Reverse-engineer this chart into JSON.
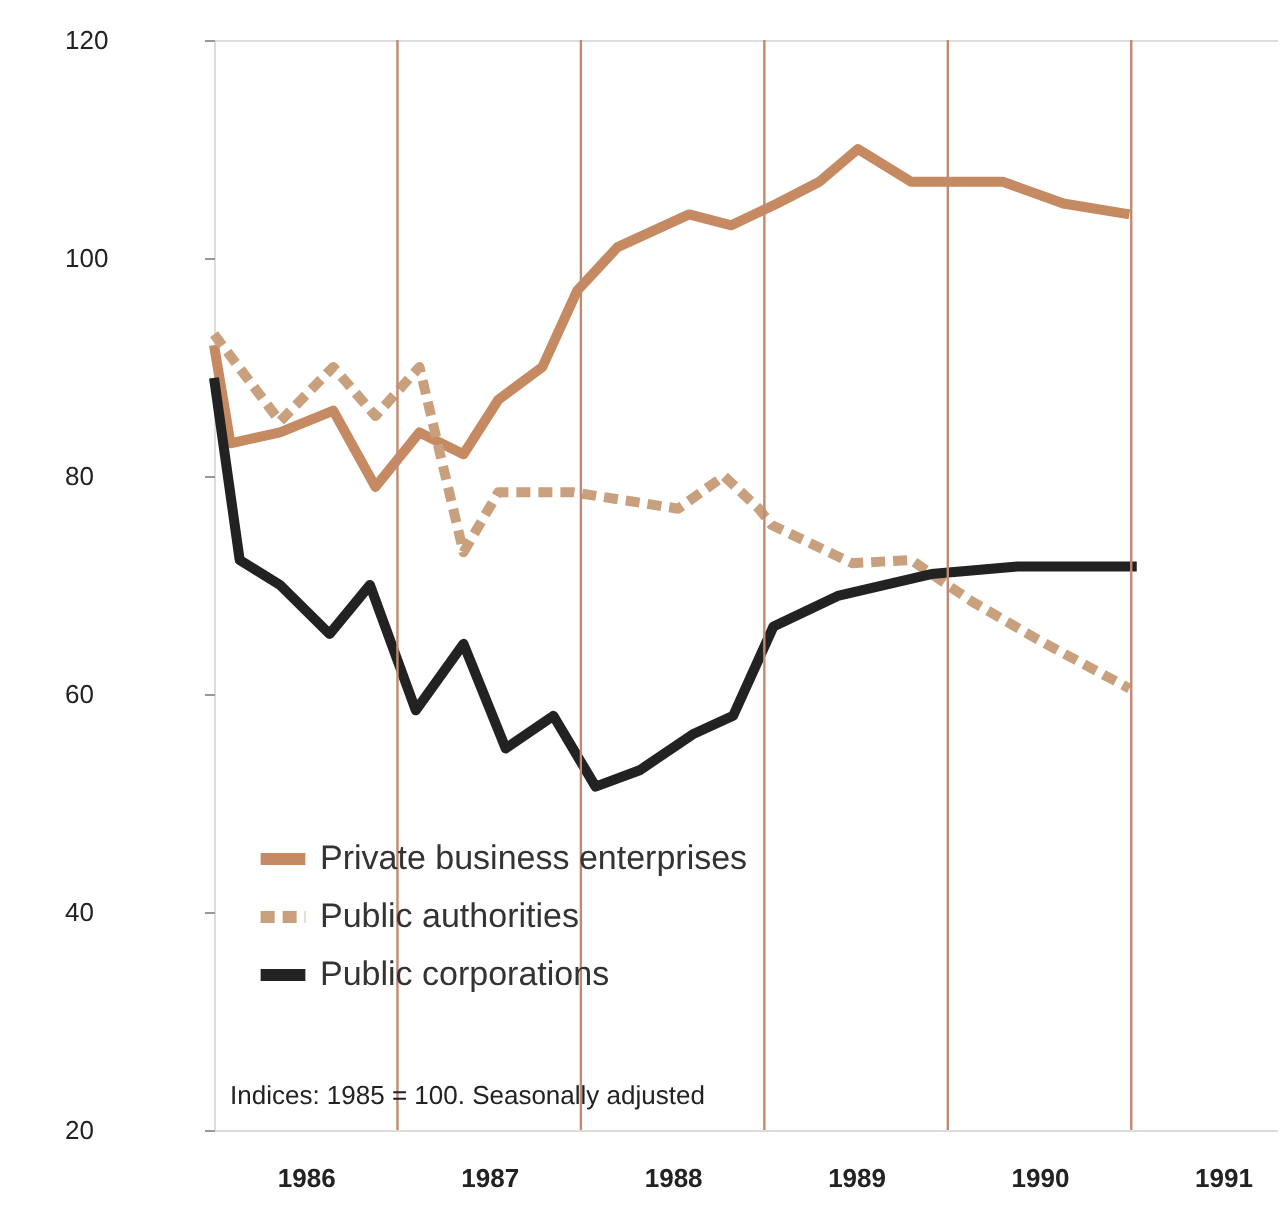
{
  "chart_data": {
    "type": "line",
    "annotations": [
      "Indices: 1985 = 100. Seasonally adjusted"
    ],
    "series": [
      {
        "name": "Private business enterprises",
        "color": "#c68a62",
        "line_style": "solid",
        "x": [
          1986.0,
          1986.09,
          1986.36,
          1986.65,
          1986.88,
          1987.12,
          1987.36,
          1987.55,
          1987.79,
          1987.98,
          1988.2,
          1988.59,
          1988.82,
          1989.07,
          1989.3,
          1989.51,
          1989.8,
          1990.3,
          1990.63,
          1990.99
        ],
        "values": [
          92,
          83,
          84,
          86,
          79,
          84,
          82,
          87,
          90,
          97,
          101,
          104,
          103,
          105,
          107,
          110,
          107,
          107,
          105,
          104
        ]
      },
      {
        "name": "Public authorities",
        "color": "#c9a07e",
        "line_style": "dashed",
        "x": [
          1986.0,
          1986.36,
          1986.65,
          1986.88,
          1987.12,
          1987.36,
          1987.55,
          1987.96,
          1988.53,
          1988.78,
          1988.97,
          1989.04,
          1989.48,
          1989.8,
          1990.13,
          1990.49,
          1990.99
        ],
        "values": [
          93,
          85,
          90,
          85.5,
          90,
          73,
          78.5,
          78.5,
          77,
          80,
          77,
          75.5,
          72,
          72.3,
          68.5,
          65,
          60.5
        ]
      },
      {
        "name": "Public corporations",
        "color": "#222222",
        "line_style": "solid",
        "x": [
          1986.0,
          1986.14,
          1986.36,
          1986.63,
          1986.85,
          1987.1,
          1987.36,
          1987.59,
          1987.85,
          1988.08,
          1988.32,
          1988.61,
          1988.83,
          1989.05,
          1989.4,
          1989.91,
          1990.38,
          1991.03
        ],
        "values": [
          89,
          72.3,
          70,
          65.5,
          70,
          58.5,
          64.6,
          55,
          58,
          51.5,
          53,
          56.3,
          58,
          66.2,
          69,
          71,
          71.7,
          71.7
        ]
      }
    ],
    "xlim": [
      1986,
      1991.8
    ],
    "xticks": [
      {
        "value": 1986.5,
        "label": "1986"
      },
      {
        "value": 1987.5,
        "label": "1987"
      },
      {
        "value": 1988.5,
        "label": "1988"
      },
      {
        "value": 1989.5,
        "label": "1989"
      },
      {
        "value": 1990.5,
        "label": "1990"
      },
      {
        "value": 1991.5,
        "label": "1991"
      }
    ],
    "ylim": [
      20,
      120
    ],
    "yticks": [
      20,
      40,
      60,
      80,
      100,
      120
    ],
    "ref_lines": [
      {
        "axis": "x",
        "value": 1987,
        "color": "#c08a70"
      },
      {
        "axis": "x",
        "value": 1988,
        "color": "#c08a70"
      },
      {
        "axis": "x",
        "value": 1989,
        "color": "#c08a70"
      },
      {
        "axis": "x",
        "value": 1990,
        "color": "#c08a70"
      },
      {
        "axis": "x",
        "value": 1991,
        "color": "#c08a70"
      }
    ],
    "grid": false,
    "legend": "bottom left"
  }
}
